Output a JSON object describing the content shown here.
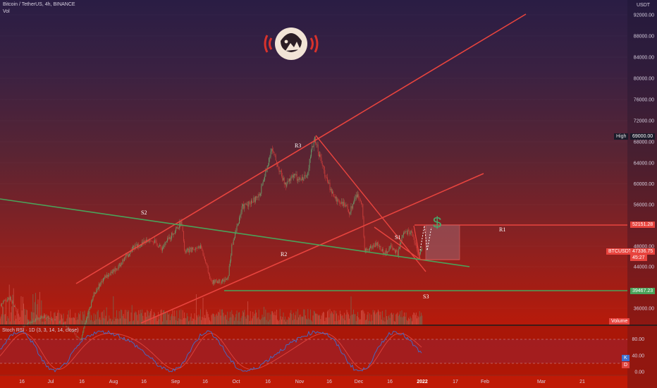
{
  "header": {
    "symbol_line": "Bitcoin / TetherUS, 4h, BINANCE",
    "vol_label": "Vol",
    "currency": "USDT"
  },
  "chart_data": {
    "type": "candlestick",
    "x_tick_labels": [
      "16",
      "Jul",
      "16",
      "Aug",
      "16",
      "Sep",
      "16",
      "Oct",
      "16",
      "Nov",
      "16",
      "Dec",
      "16",
      "2022",
      "17",
      "Feb",
      "Mar",
      "21"
    ],
    "y_tick_labels": [
      "92000.00",
      "88000.00",
      "84000.00",
      "80000.00",
      "76000.00",
      "72000.00",
      "68000.00",
      "64000.00",
      "60000.00",
      "56000.00",
      "48000.00",
      "44000.00",
      "36000.00"
    ],
    "y_ticks": [
      92000,
      88000,
      84000,
      80000,
      76000,
      72000,
      68000,
      64000,
      60000,
      56000,
      48000,
      44000,
      36000
    ],
    "ylim": [
      33000,
      93500
    ],
    "price_path": [
      [
        "2021-06-05",
        35000
      ],
      [
        "2021-06-16",
        38000
      ],
      [
        "2021-06-22",
        32500
      ],
      [
        "2021-07-01",
        34500
      ],
      [
        "2021-07-10",
        33500
      ],
      [
        "2021-07-20",
        30000
      ],
      [
        "2021-07-26",
        38500
      ],
      [
        "2021-07-31",
        41800
      ],
      [
        "2021-08-07",
        44000
      ],
      [
        "2021-08-14",
        47500
      ],
      [
        "2021-08-23",
        49500
      ],
      [
        "2021-08-28",
        47500
      ],
      [
        "2021-09-03",
        50800
      ],
      [
        "2021-09-07",
        52800
      ],
      [
        "2021-09-08",
        46800
      ],
      [
        "2021-09-16",
        48000
      ],
      [
        "2021-09-21",
        41000
      ],
      [
        "2021-09-29",
        41500
      ],
      [
        "2021-10-01",
        48000
      ],
      [
        "2021-10-06",
        55500
      ],
      [
        "2021-10-14",
        57500
      ],
      [
        "2021-10-17",
        61500
      ],
      [
        "2021-10-20",
        66800
      ],
      [
        "2021-10-27",
        59500
      ],
      [
        "2021-10-31",
        62000
      ],
      [
        "2021-11-02",
        60500
      ],
      [
        "2021-11-06",
        61500
      ],
      [
        "2021-11-10",
        68900
      ],
      [
        "2021-11-13",
        64500
      ],
      [
        "2021-11-16",
        60500
      ],
      [
        "2021-11-20",
        57000
      ],
      [
        "2021-11-23",
        56500
      ],
      [
        "2021-11-27",
        54500
      ],
      [
        "2021-11-30",
        58000
      ],
      [
        "2021-12-03",
        56500
      ],
      [
        "2021-12-04",
        47000
      ],
      [
        "2021-12-10",
        48500
      ],
      [
        "2021-12-14",
        46500
      ],
      [
        "2021-12-17",
        48000
      ],
      [
        "2021-12-20",
        46500
      ],
      [
        "2021-12-23",
        50500
      ],
      [
        "2021-12-27",
        50800
      ],
      [
        "2021-12-30",
        46500
      ],
      [
        "2022-01-01",
        47337
      ]
    ],
    "stoch_rsi": {
      "label": "Stoch RSI · 1D (3, 3, 14, 14, close)",
      "y_tick_labels": [
        "80.00",
        "40.00",
        "0.00"
      ],
      "y_ticks": [
        80,
        40,
        0
      ],
      "bands": [
        80,
        20
      ],
      "k_label": "K",
      "d_label": "D"
    },
    "annotations": {
      "lines": [
        "R1",
        "R2",
        "R3",
        "S1",
        "S2",
        "S3"
      ],
      "dollar_sign": "$"
    },
    "price_tags": {
      "high_label": "High",
      "high_value": "69000.00",
      "r1_value": "52151.28",
      "current_symbol": "BTCUSDT",
      "current_value": "47336.75",
      "current_sub": "45:27",
      "s3_value": "39467.23",
      "volume_label": "Volume"
    },
    "colors": {
      "resistance": "#e8443e",
      "support": "#4aa35a",
      "candle_up": "#6a9a6a",
      "candle_down": "#cc3e3a",
      "k_line": "#3e6fd0",
      "d_line": "#e0443e"
    }
  }
}
